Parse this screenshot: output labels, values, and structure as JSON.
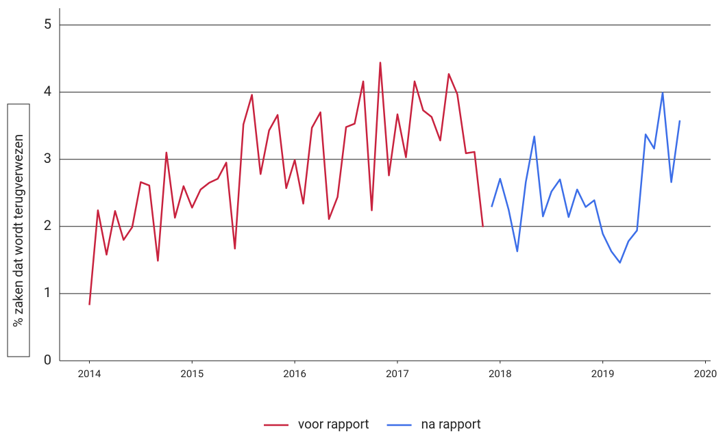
{
  "chart_data": {
    "type": "line",
    "ylabel": "% zaken dat wordt terugverwezen",
    "xlim": [
      2013.71,
      2020.05
    ],
    "xticks": [
      2014,
      2015,
      2016,
      2017,
      2018,
      2019,
      2020
    ],
    "ylim": [
      0,
      5.25
    ],
    "yticks": [
      0,
      1,
      2,
      3,
      4,
      5
    ],
    "grid": true,
    "legend": "bottom",
    "series": [
      {
        "name": "voor rapport",
        "color": "#c8223e",
        "x": [
          2014,
          2014.083,
          2014.167,
          2014.25,
          2014.333,
          2014.417,
          2014.5,
          2014.583,
          2014.667,
          2014.75,
          2014.833,
          2014.917,
          2015,
          2015.083,
          2015.167,
          2015.25,
          2015.333,
          2015.417,
          2015.5,
          2015.583,
          2015.667,
          2015.75,
          2015.833,
          2015.917,
          2016,
          2016.083,
          2016.167,
          2016.25,
          2016.333,
          2016.417,
          2016.5,
          2016.583,
          2016.667,
          2016.75,
          2016.833,
          2016.917,
          2017,
          2017.083,
          2017.167,
          2017.25,
          2017.333,
          2017.417,
          2017.5,
          2017.583,
          2017.667,
          2017.75,
          2017.833
        ],
        "values": [
          0.83,
          2.24,
          1.58,
          2.23,
          1.8,
          1.99,
          2.66,
          2.61,
          1.49,
          3.1,
          2.13,
          2.6,
          2.28,
          2.55,
          2.65,
          2.71,
          2.95,
          1.67,
          3.52,
          3.96,
          2.78,
          3.43,
          3.66,
          2.57,
          2.99,
          2.34,
          3.47,
          3.7,
          2.11,
          2.44,
          3.48,
          3.53,
          4.16,
          2.24,
          4.44,
          2.76,
          3.67,
          3.03,
          4.16,
          3.73,
          3.63,
          3.28,
          4.27,
          3.97,
          3.09,
          3.11,
          1.99
        ]
      },
      {
        "name": "na rapport",
        "color": "#3c6ee8",
        "x": [
          2017.917,
          2018,
          2018.083,
          2018.167,
          2018.25,
          2018.333,
          2018.417,
          2018.5,
          2018.583,
          2018.667,
          2018.75,
          2018.833,
          2018.917,
          2019,
          2019.083,
          2019.167,
          2019.25,
          2019.333,
          2019.417,
          2019.5,
          2019.583,
          2019.667,
          2019.75
        ],
        "values": [
          2.29,
          2.71,
          2.25,
          1.63,
          2.66,
          3.34,
          2.15,
          2.52,
          2.7,
          2.14,
          2.55,
          2.29,
          2.39,
          1.89,
          1.63,
          1.46,
          1.78,
          1.94,
          3.37,
          3.16,
          3.99,
          2.66,
          3.58
        ]
      }
    ]
  }
}
